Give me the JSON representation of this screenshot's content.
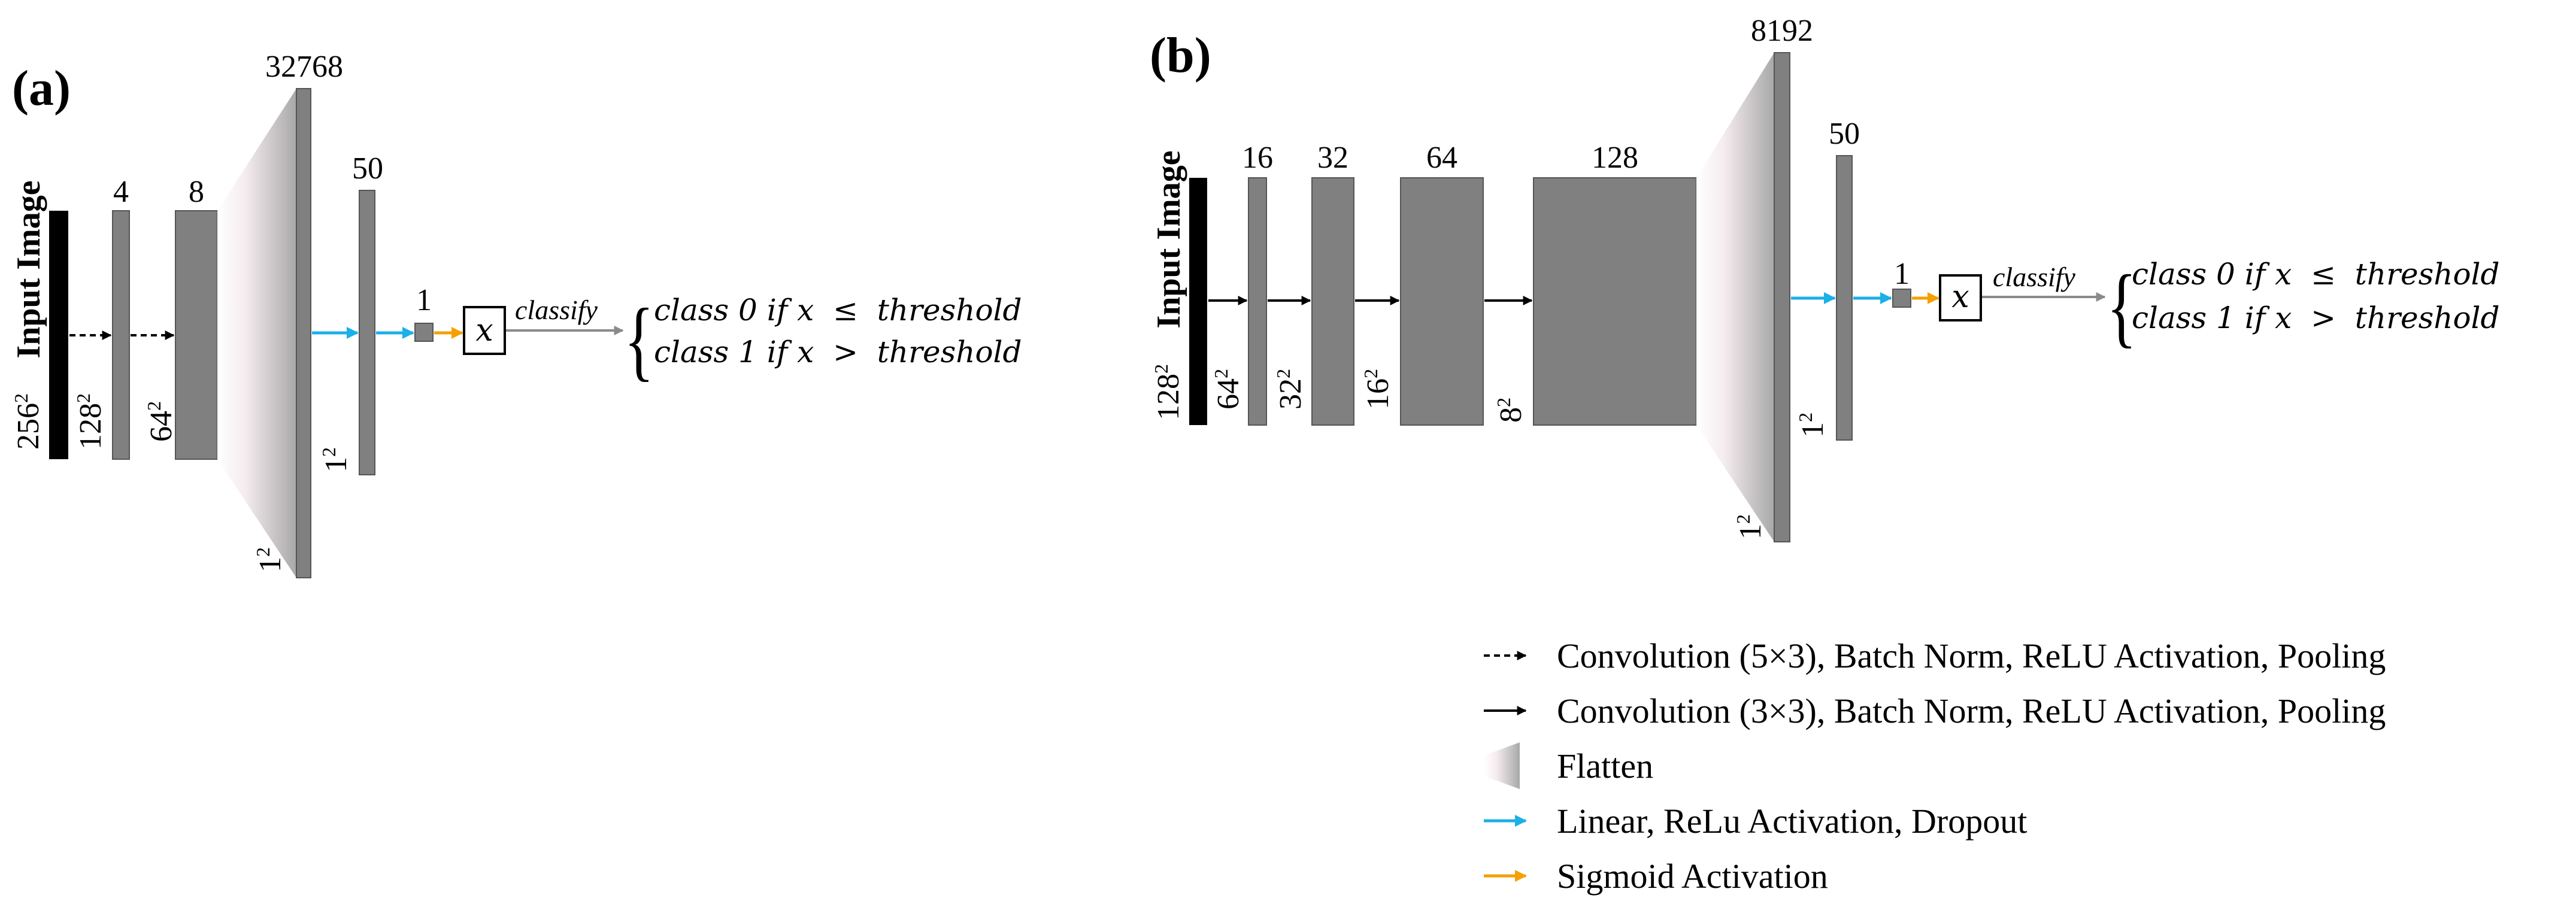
{
  "panel_a": {
    "label": "(a)",
    "input_label": "Input Image",
    "input_size_base": "256",
    "input_size_exp": "2",
    "layers": [
      {
        "channels": "4",
        "size_base": "128",
        "size_exp": "2"
      },
      {
        "channels": "8",
        "size_base": "64",
        "size_exp": "2"
      }
    ],
    "flatten": {
      "units": "32768",
      "size_base": "1",
      "size_exp": "2"
    },
    "linear": {
      "units": "50",
      "size_base": "1",
      "size_exp": "2"
    },
    "output": {
      "units": "1",
      "var": "x",
      "classify": "classify"
    },
    "rules": [
      {
        "cls": "class 0",
        "cond": "if x  ≤  threshold"
      },
      {
        "cls": "class 1",
        "cond": "if x  >  threshold"
      }
    ]
  },
  "panel_b": {
    "label": "(b)",
    "input_label": "Input Image",
    "input_size_base": "128",
    "input_size_exp": "2",
    "layers": [
      {
        "channels": "16",
        "size_base": "64",
        "size_exp": "2"
      },
      {
        "channels": "32",
        "size_base": "32",
        "size_exp": "2"
      },
      {
        "channels": "64",
        "size_base": "16",
        "size_exp": "2"
      },
      {
        "channels": "128",
        "size_base": "8",
        "size_exp": "2"
      }
    ],
    "flatten": {
      "units": "8192",
      "size_base": "1",
      "size_exp": "2"
    },
    "linear": {
      "units": "50",
      "size_base": "1",
      "size_exp": "2"
    },
    "output": {
      "units": "1",
      "var": "x",
      "classify": "classify"
    },
    "rules": [
      {
        "cls": "class 0",
        "cond": "if x  ≤  threshold"
      },
      {
        "cls": "class 1",
        "cond": "if x  >  threshold"
      }
    ]
  },
  "legend": [
    {
      "icon": "dashed-arrow-icon",
      "text": "Convolution (5×3), Batch Norm, ReLU Activation, Pooling"
    },
    {
      "icon": "solid-arrow-icon",
      "text": "Convolution (3×3), Batch Norm, ReLU Activation, Pooling"
    },
    {
      "icon": "flatten-icon",
      "text": "Flatten"
    },
    {
      "icon": "blue-arrow-icon",
      "text": "Linear, ReLu Activation, Dropout"
    },
    {
      "icon": "orange-arrow-icon",
      "text": "Sigmoid Activation"
    }
  ],
  "colors": {
    "layer_fill": "#808080",
    "layer_stroke": "#555555",
    "input_fill": "#000000",
    "linear_arrow": "#1ab0e8",
    "sigmoid_arrow": "#f5a000",
    "classify_arrow": "#8a8a8a"
  }
}
